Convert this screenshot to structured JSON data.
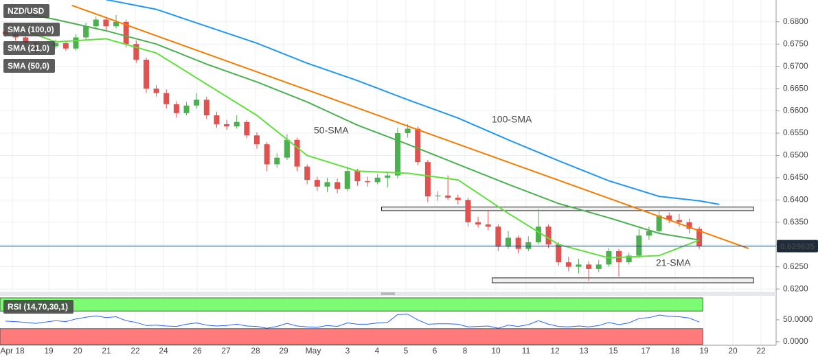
{
  "chart_data": {
    "type": "candlestick",
    "title": "NZD/USD",
    "up_color": "#4caf50",
    "down_color": "#e0524f",
    "ylim": [
      0.6194,
      0.6849
    ],
    "yticks": [
      {
        "value": 0.68,
        "label": "0.6800"
      },
      {
        "value": 0.675,
        "label": "0.6750"
      },
      {
        "value": 0.67,
        "label": "0.6700"
      },
      {
        "value": 0.665,
        "label": "0.6650"
      },
      {
        "value": 0.66,
        "label": "0.6600"
      },
      {
        "value": 0.655,
        "label": "0.6550"
      },
      {
        "value": 0.65,
        "label": "0.6500"
      },
      {
        "value": 0.645,
        "label": "0.6450"
      },
      {
        "value": 0.64,
        "label": "0.6400"
      },
      {
        "value": 0.635,
        "label": "0.6350"
      },
      {
        "value": 0.63,
        "label": "0.6300"
      },
      {
        "value": 0.625,
        "label": "0.6250"
      },
      {
        "value": 0.62,
        "label": "0.6200"
      }
    ],
    "grid": true,
    "x_labels": [
      "Apr 18",
      "19",
      "20",
      "21",
      "22",
      "24",
      "26",
      "27",
      "28",
      "29",
      "May",
      "3",
      "4",
      "5",
      "6",
      "8",
      "10",
      "11",
      "12",
      "13",
      "15",
      "17",
      "18",
      "19",
      "20",
      "22"
    ],
    "last_price": 0.629635,
    "candles": [
      [
        0.6778,
        0.6785,
        0.6766,
        0.6772
      ],
      [
        0.6772,
        0.6778,
        0.6758,
        0.6765
      ],
      [
        0.6765,
        0.677,
        0.6745,
        0.6752
      ],
      [
        0.6752,
        0.6756,
        0.673,
        0.6738
      ],
      [
        0.6738,
        0.6752,
        0.6733,
        0.6745
      ],
      [
        0.6745,
        0.676,
        0.674,
        0.6752
      ],
      [
        0.6752,
        0.6758,
        0.6735,
        0.674
      ],
      [
        0.674,
        0.6772,
        0.6736,
        0.6765
      ],
      [
        0.6765,
        0.6798,
        0.676,
        0.679
      ],
      [
        0.679,
        0.6812,
        0.6784,
        0.6805
      ],
      [
        0.6805,
        0.681,
        0.6782,
        0.679
      ],
      [
        0.679,
        0.6815,
        0.6785,
        0.68
      ],
      [
        0.68,
        0.6805,
        0.6742,
        0.675
      ],
      [
        0.675,
        0.6758,
        0.6708,
        0.6715
      ],
      [
        0.6715,
        0.672,
        0.664,
        0.665
      ],
      [
        0.665,
        0.6658,
        0.6632,
        0.664
      ],
      [
        0.664,
        0.6648,
        0.6605,
        0.6615
      ],
      [
        0.6615,
        0.6622,
        0.6585,
        0.6595
      ],
      [
        0.6595,
        0.662,
        0.659,
        0.6612
      ],
      [
        0.6612,
        0.664,
        0.6605,
        0.6625
      ],
      [
        0.6625,
        0.6632,
        0.6582,
        0.659
      ],
      [
        0.659,
        0.6598,
        0.6562,
        0.657
      ],
      [
        0.657,
        0.658,
        0.6558,
        0.6565
      ],
      [
        0.6565,
        0.659,
        0.656,
        0.6575
      ],
      [
        0.6575,
        0.658,
        0.6538,
        0.6545
      ],
      [
        0.6545,
        0.6552,
        0.6515,
        0.6525
      ],
      [
        0.6525,
        0.653,
        0.6465,
        0.648
      ],
      [
        0.648,
        0.6505,
        0.6472,
        0.6495
      ],
      [
        0.6495,
        0.6548,
        0.649,
        0.6535
      ],
      [
        0.6535,
        0.654,
        0.6465,
        0.6475
      ],
      [
        0.6475,
        0.648,
        0.6435,
        0.6445
      ],
      [
        0.6445,
        0.6452,
        0.642,
        0.643
      ],
      [
        0.643,
        0.645,
        0.6418,
        0.644
      ],
      [
        0.644,
        0.6448,
        0.6415,
        0.6425
      ],
      [
        0.6425,
        0.6475,
        0.642,
        0.6465
      ],
      [
        0.6465,
        0.647,
        0.6432,
        0.6442
      ],
      [
        0.6442,
        0.6452,
        0.643,
        0.644
      ],
      [
        0.644,
        0.6458,
        0.6435,
        0.645
      ],
      [
        0.645,
        0.6462,
        0.6428,
        0.6455
      ],
      [
        0.6455,
        0.6562,
        0.6448,
        0.655
      ],
      [
        0.655,
        0.657,
        0.654,
        0.656
      ],
      [
        0.656,
        0.6565,
        0.6478,
        0.6485
      ],
      [
        0.6485,
        0.649,
        0.6395,
        0.6408
      ],
      [
        0.6408,
        0.642,
        0.6398,
        0.641
      ],
      [
        0.641,
        0.6455,
        0.64,
        0.6405
      ],
      [
        0.6405,
        0.6412,
        0.639,
        0.64
      ],
      [
        0.64,
        0.6405,
        0.634,
        0.635
      ],
      [
        0.635,
        0.6362,
        0.6338,
        0.6345
      ],
      [
        0.6345,
        0.6375,
        0.6332,
        0.634
      ],
      [
        0.634,
        0.6345,
        0.6285,
        0.6295
      ],
      [
        0.6295,
        0.633,
        0.629,
        0.6315
      ],
      [
        0.6315,
        0.632,
        0.628,
        0.629
      ],
      [
        0.629,
        0.6318,
        0.6285,
        0.6305
      ],
      [
        0.6305,
        0.638,
        0.63,
        0.634
      ],
      [
        0.634,
        0.6345,
        0.6292,
        0.63
      ],
      [
        0.63,
        0.6305,
        0.6252,
        0.626
      ],
      [
        0.626,
        0.6272,
        0.624,
        0.625
      ],
      [
        0.625,
        0.6268,
        0.6235,
        0.6255
      ],
      [
        0.6255,
        0.6262,
        0.6218,
        0.6245
      ],
      [
        0.6245,
        0.6265,
        0.6238,
        0.6255
      ],
      [
        0.6255,
        0.6292,
        0.625,
        0.6285
      ],
      [
        0.6285,
        0.629,
        0.6228,
        0.626
      ],
      [
        0.626,
        0.6282,
        0.6255,
        0.6275
      ],
      [
        0.6275,
        0.6335,
        0.627,
        0.632
      ],
      [
        0.632,
        0.634,
        0.631,
        0.633
      ],
      [
        0.633,
        0.6375,
        0.6325,
        0.6365
      ],
      [
        0.6365,
        0.6372,
        0.6348,
        0.6355
      ],
      [
        0.6355,
        0.6368,
        0.634,
        0.635
      ],
      [
        0.635,
        0.6358,
        0.6325,
        0.6335
      ],
      [
        0.6335,
        0.634,
        0.629,
        0.6296
      ]
    ],
    "series": [
      {
        "name": "SMA (100,0)",
        "annotation": "100-SMA",
        "color": "#2196f3",
        "x": [
          10,
          15,
          20,
          25,
          30,
          35,
          40,
          45,
          50,
          55,
          60,
          65,
          69,
          71
        ],
        "values": [
          0.685,
          0.6828,
          0.679,
          0.6752,
          0.6707,
          0.6668,
          0.6625,
          0.6584,
          0.6535,
          0.6488,
          0.6443,
          0.6408,
          0.6398,
          0.639
        ]
      },
      {
        "name": "SMA (21,0)",
        "annotation": "21-SMA",
        "color": "#5fe03a",
        "x": [
          0,
          5,
          10,
          15,
          20,
          25,
          30,
          35,
          40,
          45,
          50,
          55,
          60,
          65,
          69
        ],
        "values": [
          0.6795,
          0.6755,
          0.6762,
          0.673,
          0.666,
          0.659,
          0.65,
          0.6465,
          0.646,
          0.6445,
          0.637,
          0.63,
          0.627,
          0.6275,
          0.631
        ]
      },
      {
        "name": "SMA (50,0)",
        "annotation": "50-SMA",
        "color": "#4caf50",
        "x": [
          0,
          5,
          10,
          15,
          20,
          25,
          30,
          35,
          40,
          45,
          50,
          55,
          60,
          65,
          69
        ],
        "values": [
          0.6828,
          0.6805,
          0.678,
          0.675,
          0.6705,
          0.6665,
          0.662,
          0.6568,
          0.6525,
          0.648,
          0.6435,
          0.6392,
          0.636,
          0.6325,
          0.631
        ]
      }
    ],
    "trendline": {
      "color": "#f57c00",
      "x": [
        6.6,
        73.9
      ],
      "values": [
        0.6837,
        0.6291
      ]
    },
    "zones": [
      {
        "x": [
          37.4,
          74.4
        ],
        "y": [
          0.6376,
          0.6384
        ]
      },
      {
        "x": [
          48.4,
          74.4
        ],
        "y": [
          0.6214,
          0.6225
        ]
      }
    ],
    "rsi": {
      "name": "RSI (14,70,30,1)",
      "color": "#2962ff",
      "ylim": [
        0,
        100
      ],
      "yticks": [
        {
          "value": 50,
          "label": "50.0000"
        },
        {
          "value": 0,
          "label": "0.0000"
        }
      ],
      "overbought": 70,
      "oversold": 30,
      "overbought_color": "#7cfc72",
      "oversold_color": "#ff7b7b",
      "values": [
        47,
        46,
        44,
        42,
        45,
        48,
        46,
        52,
        56,
        59,
        55,
        57,
        48,
        44,
        37,
        38,
        36,
        35,
        40,
        43,
        38,
        36,
        37,
        40,
        36,
        35,
        31,
        35,
        42,
        36,
        34,
        33,
        37,
        35,
        43,
        40,
        40,
        43,
        44,
        62,
        63,
        50,
        40,
        41,
        41,
        40,
        34,
        35,
        36,
        31,
        38,
        35,
        39,
        48,
        40,
        35,
        34,
        36,
        34,
        37,
        44,
        39,
        43,
        53,
        55,
        61,
        58,
        57,
        54,
        45
      ]
    }
  }
}
